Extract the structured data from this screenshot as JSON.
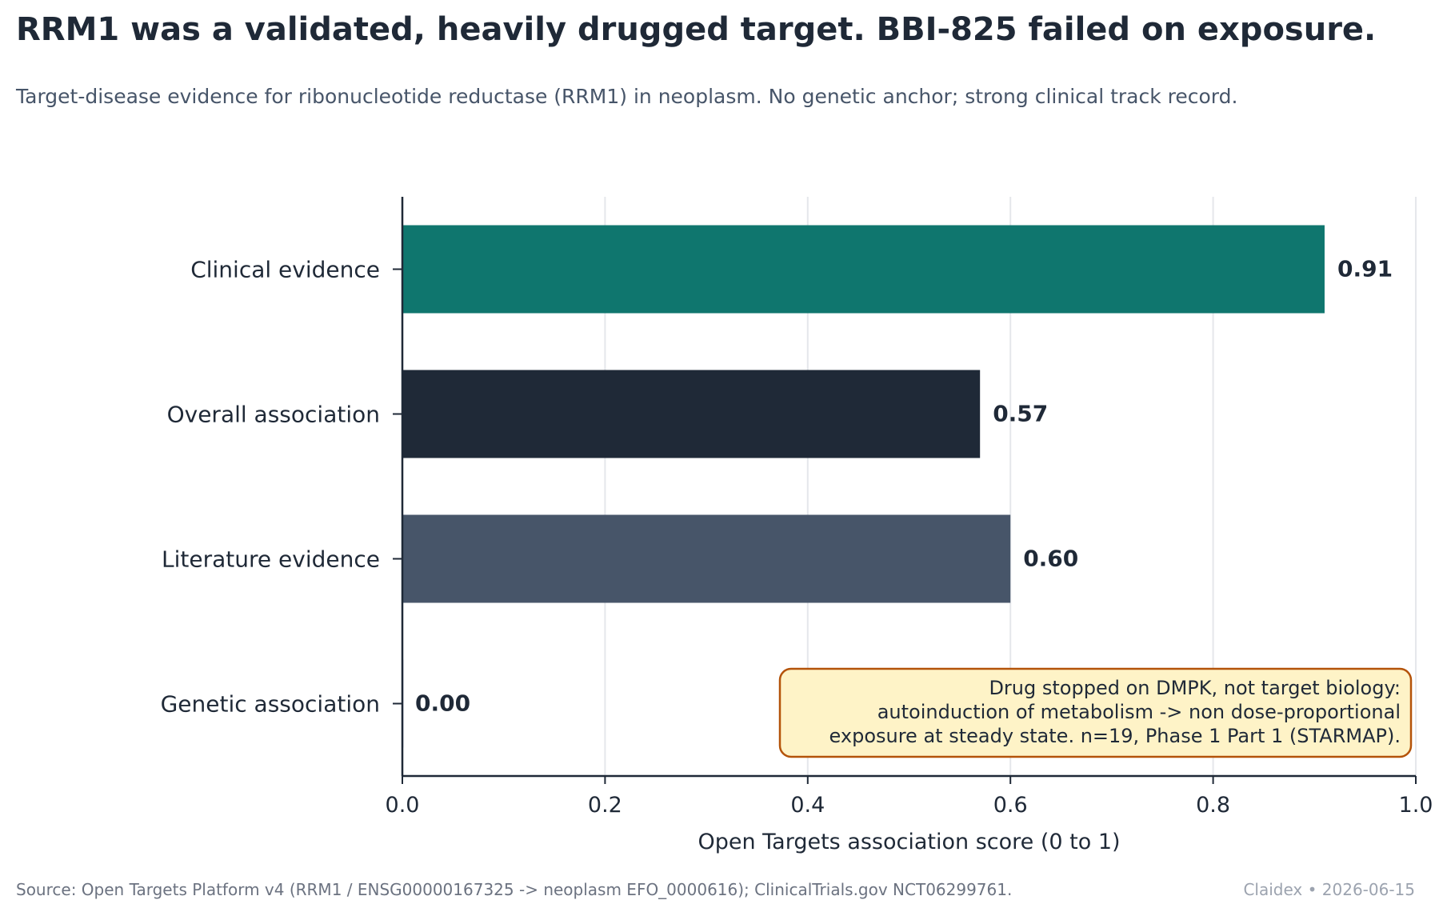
{
  "header": {
    "title": "RRM1 was a validated, heavily drugged target. BBI-825 failed on exposure.",
    "subtitle": "Target-disease evidence for ribonucleotide reductase (RRM1) in neoplasm. No genetic anchor; strong clinical track record."
  },
  "footer": {
    "source": "Source: Open Targets Platform v4 (RRM1 / ENSG00000167325 -> neoplasm EFO_0000616); ClinicalTrials.gov NCT06299761.",
    "brand": "Claidex • 2026-06-15"
  },
  "chart_data": {
    "type": "bar",
    "orientation": "horizontal",
    "categories": [
      "Clinical evidence",
      "Overall association",
      "Literature evidence",
      "Genetic association"
    ],
    "values": [
      0.91,
      0.57,
      0.6,
      0.0
    ],
    "value_labels": [
      "0.91",
      "0.57",
      "0.60",
      "0.00"
    ],
    "colors": [
      "#0f766e",
      "#1f2937",
      "#475569",
      "#cbd5e1"
    ],
    "xlabel": "Open Targets association score (0 to 1)",
    "xlim": [
      0,
      1
    ],
    "xticks": [
      0,
      0.2,
      0.4,
      0.6,
      0.8,
      1.0
    ],
    "xtick_labels": [
      "0.0",
      "0.2",
      "0.4",
      "0.6",
      "0.8",
      "1.0"
    ],
    "grid": "vertical",
    "annotation": {
      "lines": [
        "Drug stopped on DMPK, not target biology:",
        "autoinduction of metabolism -> non dose-proportional",
        "exposure at steady state. n=19, Phase 1 Part 1 (STARMAP)."
      ],
      "placement": "bottom-right",
      "fill": "#fef3c7",
      "border": "#b45309"
    }
  }
}
